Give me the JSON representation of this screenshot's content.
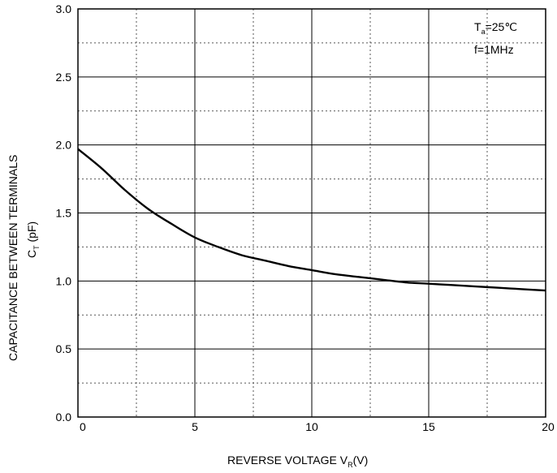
{
  "chart_data": {
    "type": "line",
    "xlabel": {
      "main": "REVERSE VOLTAGE V",
      "sub": "R",
      "tail": "(V)"
    },
    "ylabel": {
      "line1": "CAPACITANCE BETWEEN TERMINALS",
      "main": "C",
      "sub": "T",
      "tail": "  (pF)"
    },
    "annotation": {
      "line1_main": "T",
      "line1_sub": "a",
      "line1_tail": "=25℃",
      "line2": "f=1MHz"
    },
    "xlim": [
      0,
      20
    ],
    "ylim": [
      0,
      3.0
    ],
    "x_ticks": [
      0,
      5,
      10,
      15,
      20
    ],
    "x_tick_labels": [
      "0",
      "5",
      "10",
      "15",
      "20"
    ],
    "y_ticks": [
      0,
      0.5,
      1.0,
      1.5,
      2.0,
      2.5,
      3.0
    ],
    "y_tick_labels": [
      "0.0",
      "0.5",
      "1.0",
      "1.5",
      "2.0",
      "2.5",
      "3.0"
    ],
    "grid": "solid major, dotted minor",
    "series": [
      {
        "x": [
          0,
          1,
          2,
          3,
          4,
          5,
          6,
          7,
          8,
          9,
          10,
          11,
          12,
          13,
          14,
          15,
          16,
          17,
          18,
          19,
          20
        ],
        "y": [
          1.97,
          1.83,
          1.67,
          1.53,
          1.42,
          1.32,
          1.25,
          1.19,
          1.15,
          1.11,
          1.08,
          1.05,
          1.03,
          1.01,
          0.99,
          0.98,
          0.97,
          0.96,
          0.95,
          0.94,
          0.93
        ]
      }
    ]
  }
}
